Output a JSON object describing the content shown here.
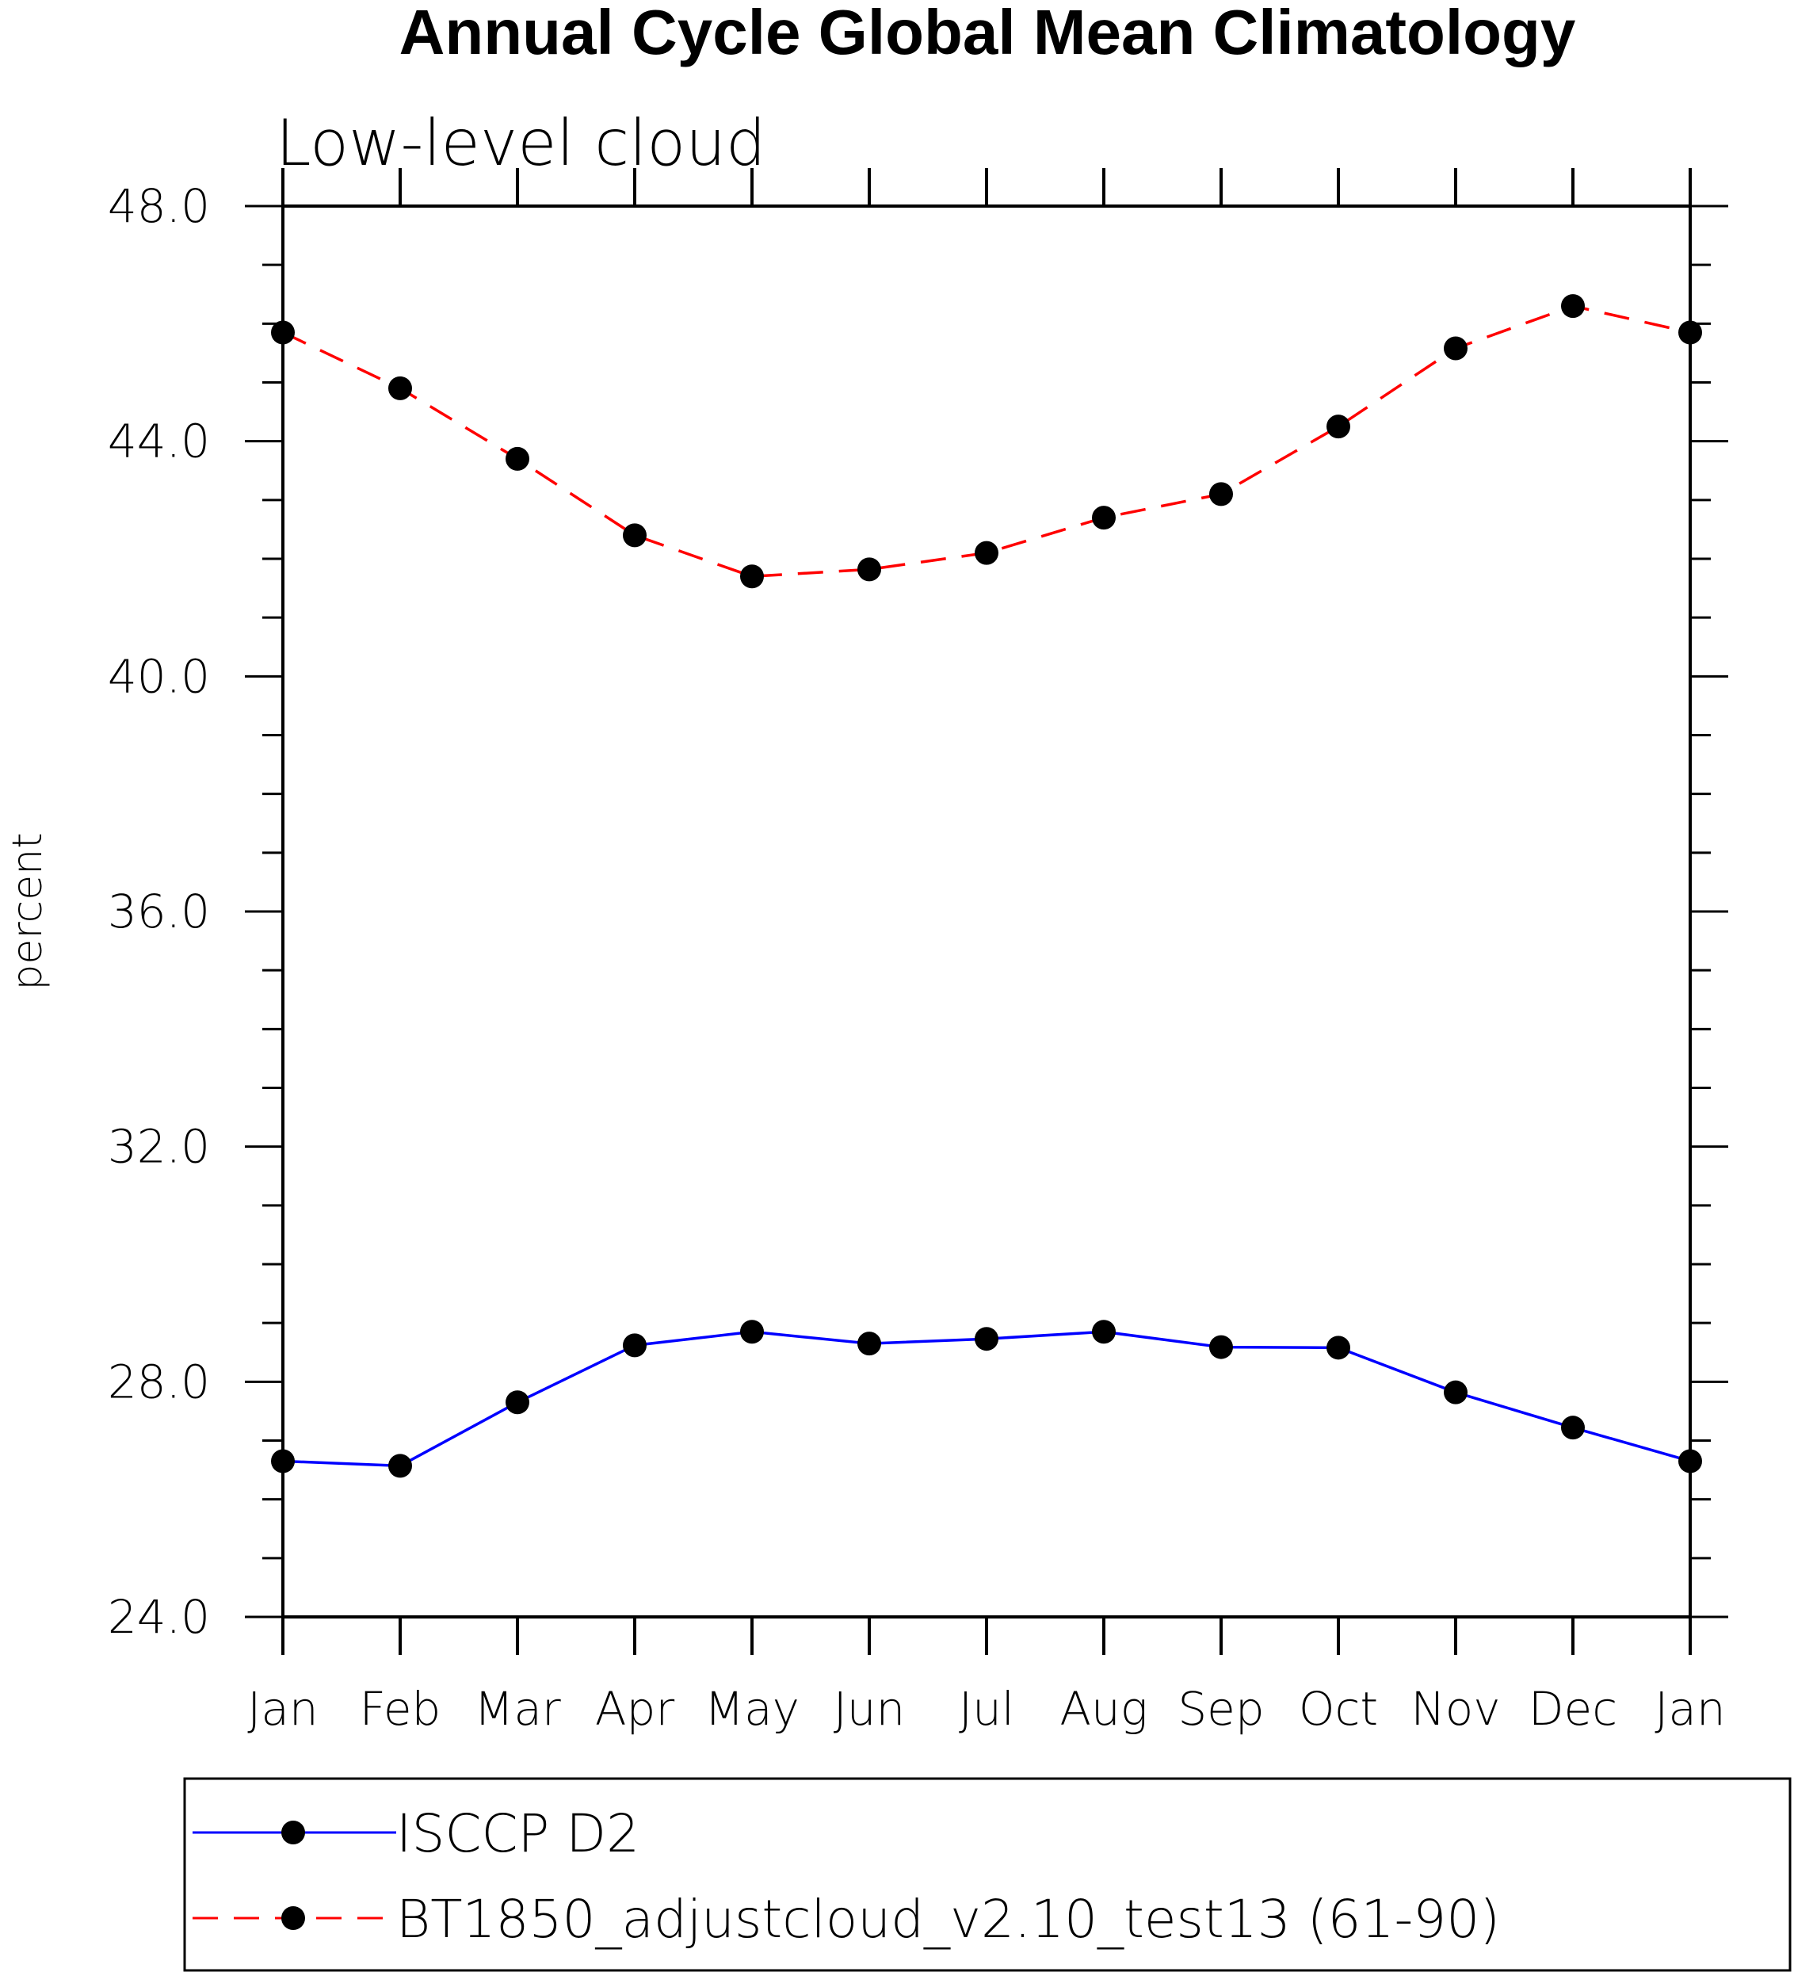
{
  "chart_data": {
    "type": "line",
    "title": "Annual Cycle Global Mean Climatology",
    "subtitle": "Low-level cloud",
    "xlabel": "",
    "ylabel": "percent",
    "categories": [
      "Jan",
      "Feb",
      "Mar",
      "Apr",
      "May",
      "Jun",
      "Jul",
      "Aug",
      "Sep",
      "Oct",
      "Nov",
      "Dec",
      "Jan"
    ],
    "ylim": [
      24.0,
      48.0
    ],
    "yticks": [
      "24.0",
      "28.0",
      "32.0",
      "36.0",
      "40.0",
      "44.0",
      "48.0"
    ],
    "legend_position": "bottom",
    "series": [
      {
        "name": "ISCCP D2",
        "color": "#0000ff",
        "dash": "solid",
        "values": [
          26.65,
          26.57,
          27.65,
          28.62,
          28.85,
          28.65,
          28.73,
          28.85,
          28.59,
          28.58,
          27.82,
          27.22,
          26.65
        ]
      },
      {
        "name": "BT1850_adjustcloud_v2.10_test13 (61-90)",
        "color": "#ff0000",
        "dash": "dashed",
        "values": [
          45.85,
          44.9,
          43.7,
          42.4,
          41.7,
          41.82,
          42.1,
          42.7,
          43.1,
          44.25,
          45.58,
          46.3,
          45.85
        ]
      }
    ]
  }
}
